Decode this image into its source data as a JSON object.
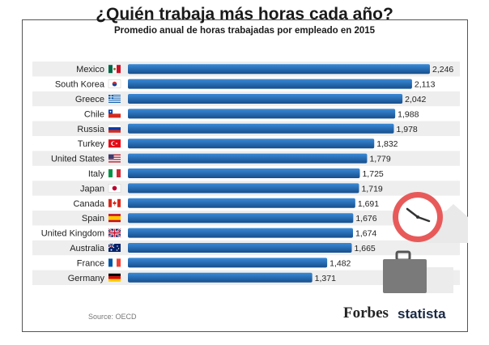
{
  "header": {
    "title": "¿Quién trabaja más horas cada año?",
    "subtitle": "Promedio anual de horas trabajadas por empleado en 2015"
  },
  "footer": {
    "source": "Source: OECD",
    "logo_forbes": "Forbes",
    "logo_statista": "statista"
  },
  "colors": {
    "bar": "#1f6fbf",
    "bar_dark": "#164f8c",
    "row_band": "#eeeeee",
    "clock_ring": "#e85a5a",
    "briefcase": "#7a7a7a"
  },
  "chart_data": {
    "type": "bar",
    "orientation": "horizontal",
    "title": "¿Quién trabaja más horas cada año?",
    "subtitle": "Promedio anual de horas trabajadas por empleado en 2015",
    "categories": [
      "Mexico",
      "South Korea",
      "Greece",
      "Chile",
      "Russia",
      "Turkey",
      "United States",
      "Italy",
      "Japan",
      "Canada",
      "Spain",
      "United Kingdom",
      "Australia",
      "France",
      "Germany"
    ],
    "values": [
      2246,
      2113,
      2042,
      1988,
      1978,
      1832,
      1779,
      1725,
      1719,
      1691,
      1676,
      1674,
      1665,
      1482,
      1371
    ],
    "value_labels": [
      "2,246",
      "2,113",
      "2,042",
      "1,988",
      "1,978",
      "1,832",
      "1,779",
      "1,725",
      "1,719",
      "1,691",
      "1,676",
      "1,674",
      "1,665",
      "1,482",
      "1,371"
    ],
    "flag_icons": [
      "mexico-flag-icon",
      "south-korea-flag-icon",
      "greece-flag-icon",
      "chile-flag-icon",
      "russia-flag-icon",
      "turkey-flag-icon",
      "united-states-flag-icon",
      "italy-flag-icon",
      "japan-flag-icon",
      "canada-flag-icon",
      "spain-flag-icon",
      "united-kingdom-flag-icon",
      "australia-flag-icon",
      "france-flag-icon",
      "germany-flag-icon"
    ],
    "xlim": [
      0,
      2246
    ],
    "grid": false,
    "legend": "none",
    "decorations": [
      "clock-icon",
      "briefcase-icon"
    ]
  }
}
